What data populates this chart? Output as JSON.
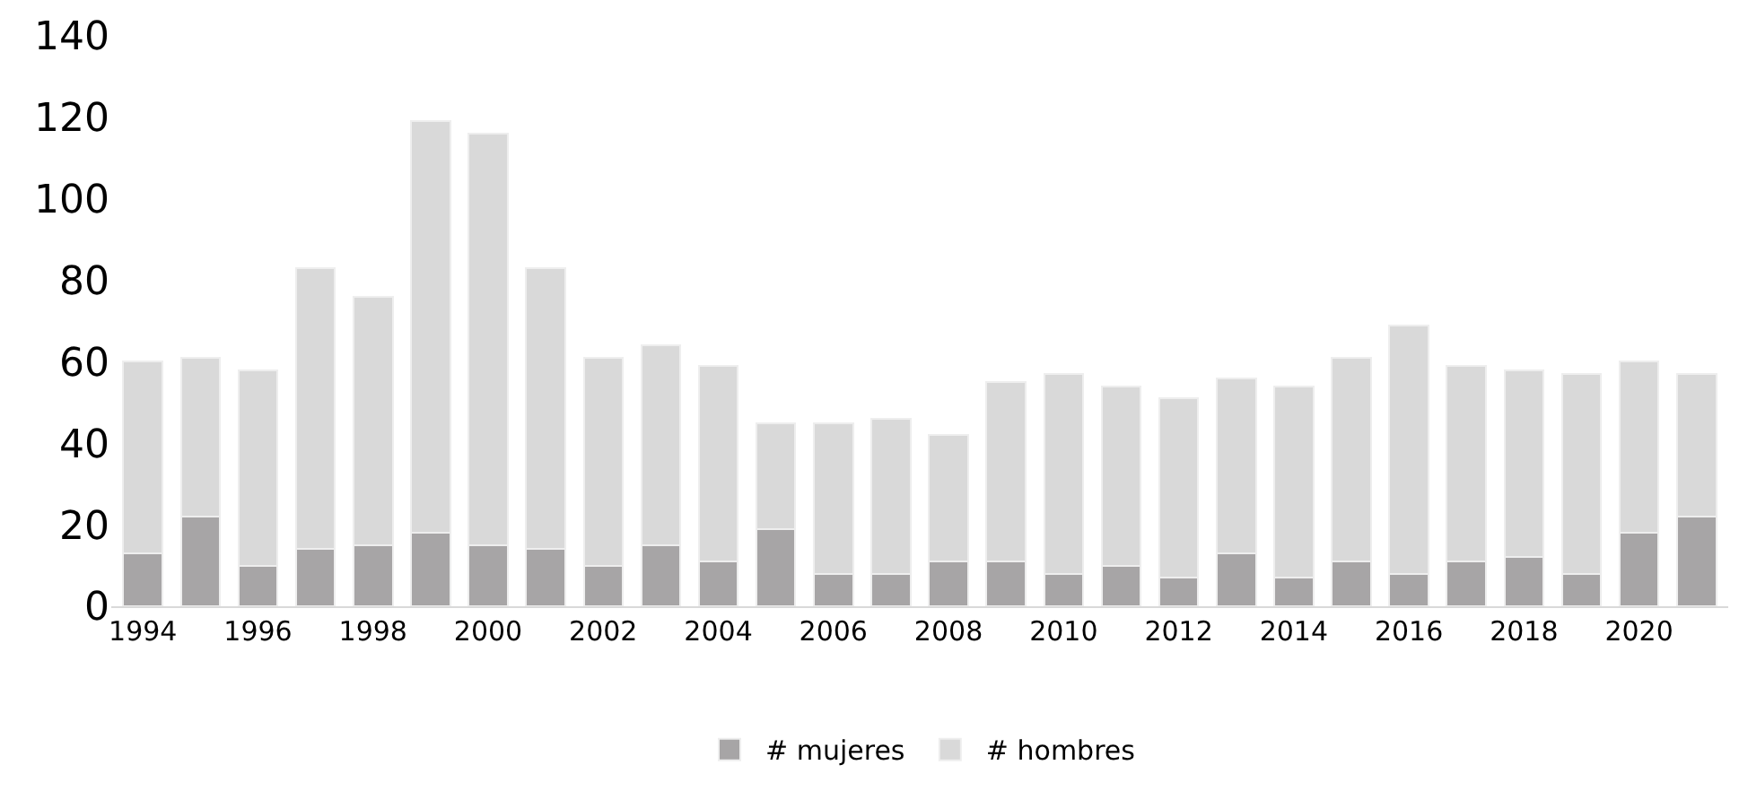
{
  "chart_data": {
    "type": "bar",
    "stacked": true,
    "categories": [
      "1994",
      null,
      "1996",
      null,
      "1998",
      null,
      "2000",
      null,
      "2002",
      null,
      "2004",
      null,
      "2006",
      null,
      "2008",
      null,
      "2010",
      null,
      "2012",
      null,
      "2014",
      null,
      "2016",
      null,
      "2018",
      null,
      "2020",
      null
    ],
    "series": [
      {
        "name": "# mujeres",
        "color": "#a7a5a6",
        "values": [
          13,
          22,
          10,
          14,
          15,
          18,
          15,
          14,
          10,
          15,
          11,
          19,
          8,
          8,
          11,
          11,
          8,
          10,
          7,
          13,
          7,
          11,
          8,
          11,
          12,
          8,
          18,
          22
        ]
      },
      {
        "name": "# hombres",
        "color": "#d9d9d9",
        "values": [
          47,
          39,
          48,
          69,
          61,
          101,
          101,
          69,
          51,
          49,
          48,
          26,
          37,
          38,
          31,
          44,
          49,
          44,
          44,
          43,
          47,
          50,
          61,
          48,
          46,
          49,
          42,
          35
        ]
      }
    ],
    "ylim": [
      0,
      140
    ],
    "yticks": [
      0,
      20,
      40,
      60,
      80,
      100,
      120,
      140
    ],
    "legend": "bottom"
  }
}
